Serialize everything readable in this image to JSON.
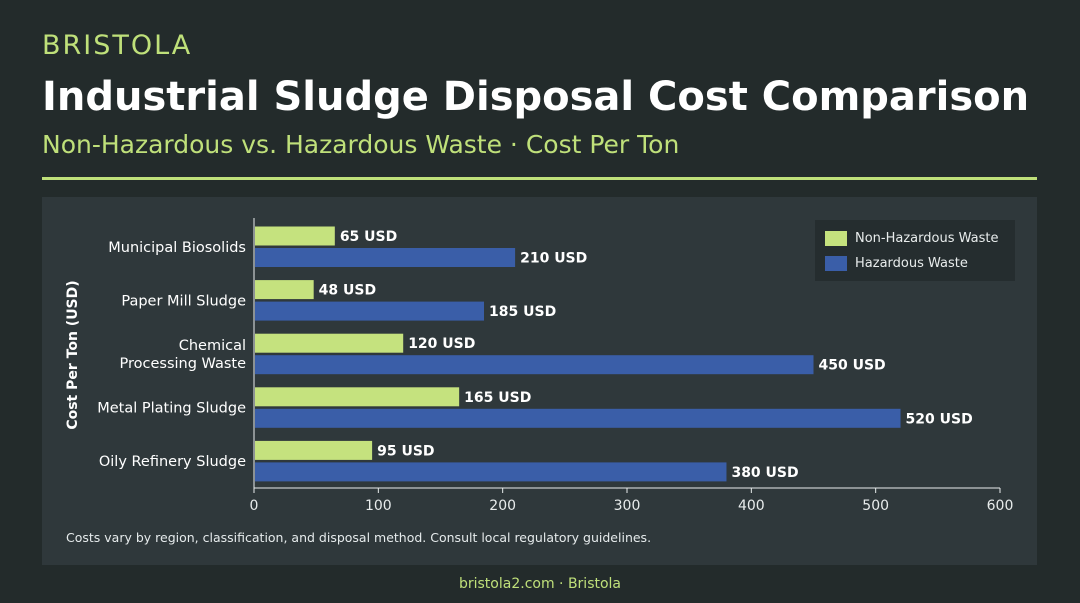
{
  "brand": "BRISTOLA",
  "header": {
    "title": "Industrial Sludge Disposal Cost Comparison",
    "subtitle": "Non-Hazardous vs. Hazardous Waste · Cost Per Ton"
  },
  "note": "Costs vary by region, classification, and disposal method. Consult local regulatory guidelines.",
  "footer": "bristola2.com · Bristola",
  "colors": {
    "non_hazardous": "#c5e27e",
    "hazardous": "#3a5ea8",
    "accent": "#bfe07a"
  },
  "chart_data": {
    "type": "bar",
    "orientation": "horizontal",
    "categories": [
      "Municipal Biosolids",
      "Paper Mill Sludge",
      "Chemical Processing Waste",
      "Metal Plating Sludge",
      "Oily Refinery Sludge"
    ],
    "category_lines": [
      [
        "Municipal Biosolids"
      ],
      [
        "Paper Mill Sludge"
      ],
      [
        "Chemical",
        "Processing Waste"
      ],
      [
        "Metal Plating Sludge"
      ],
      [
        "Oily Refinery Sludge"
      ]
    ],
    "series": [
      {
        "name": "Non-Hazardous Waste",
        "values": [
          65,
          48,
          120,
          165,
          95
        ],
        "labels": [
          "65 USD",
          "48 USD",
          "120 USD",
          "165 USD",
          "95 USD"
        ]
      },
      {
        "name": "Hazardous Waste",
        "values": [
          210,
          185,
          450,
          520,
          380
        ],
        "labels": [
          "210 USD",
          "185 USD",
          "450 USD",
          "520 USD",
          "380 USD"
        ]
      }
    ],
    "xlabel": "",
    "ylabel": "Cost Per Ton (USD)",
    "xlim": [
      0,
      600
    ],
    "xticks": [
      0,
      100,
      200,
      300,
      400,
      500,
      600
    ],
    "grid": false,
    "legend_position": "top-right"
  }
}
